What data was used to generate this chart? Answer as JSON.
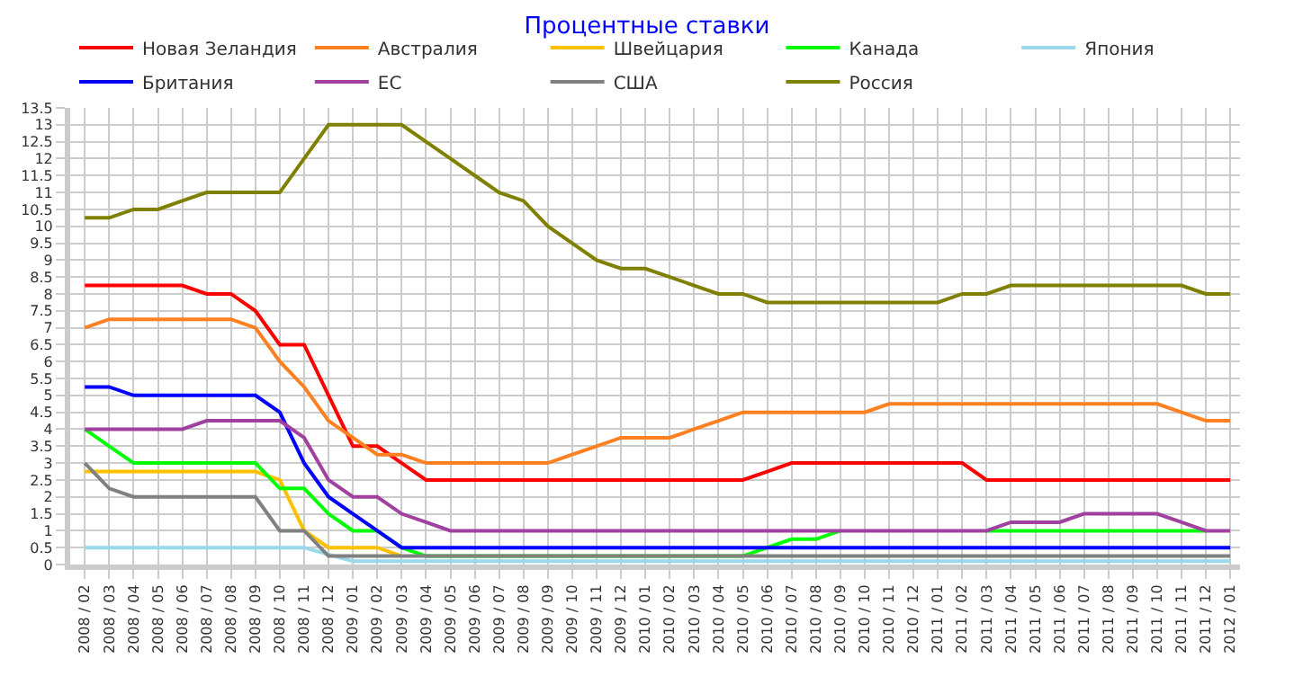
{
  "chart_data": {
    "type": "line",
    "title": "Процентные ставки",
    "categories": [
      "2008 / 02",
      "2008 / 03",
      "2008 / 04",
      "2008 / 05",
      "2008 / 06",
      "2008 / 07",
      "2008 / 08",
      "2008 / 09",
      "2008 / 10",
      "2008 / 11",
      "2008 / 12",
      "2009 / 01",
      "2009 / 02",
      "2009 / 03",
      "2009 / 04",
      "2009 / 05",
      "2009 / 06",
      "2009 / 07",
      "2009 / 08",
      "2009 / 09",
      "2009 / 10",
      "2009 / 11",
      "2009 / 12",
      "2010 / 01",
      "2010 / 02",
      "2010 / 03",
      "2010 / 04",
      "2010 / 05",
      "2010 / 06",
      "2010 / 07",
      "2010 / 08",
      "2010 / 09",
      "2010 / 10",
      "2010 / 11",
      "2010 / 12",
      "2011 / 01",
      "2011 / 02",
      "2011 / 03",
      "2011 / 04",
      "2011 / 05",
      "2011 / 06",
      "2011 / 07",
      "2011 / 08",
      "2011 / 09",
      "2011 / 10",
      "2011 / 11",
      "2011 / 12",
      "2012 / 01"
    ],
    "series": [
      {
        "name": "Новая Зеландия",
        "color": "#ff0000",
        "values": [
          8.25,
          8.25,
          8.25,
          8.25,
          8.25,
          8,
          8,
          7.5,
          6.5,
          6.5,
          5,
          3.5,
          3.5,
          3,
          2.5,
          2.5,
          2.5,
          2.5,
          2.5,
          2.5,
          2.5,
          2.5,
          2.5,
          2.5,
          2.5,
          2.5,
          2.5,
          2.5,
          2.75,
          3,
          3,
          3,
          3,
          3,
          3,
          3,
          3,
          2.5,
          2.5,
          2.5,
          2.5,
          2.5,
          2.5,
          2.5,
          2.5,
          2.5,
          2.5,
          2.5
        ]
      },
      {
        "name": "Австралия",
        "color": "#ff8020",
        "values": [
          7,
          7.25,
          7.25,
          7.25,
          7.25,
          7.25,
          7.25,
          7,
          6,
          5.25,
          4.25,
          3.75,
          3.25,
          3.25,
          3,
          3,
          3,
          3,
          3,
          3,
          3.25,
          3.5,
          3.75,
          3.75,
          3.75,
          4,
          4.25,
          4.5,
          4.5,
          4.5,
          4.5,
          4.5,
          4.5,
          4.75,
          4.75,
          4.75,
          4.75,
          4.75,
          4.75,
          4.75,
          4.75,
          4.75,
          4.75,
          4.75,
          4.75,
          4.5,
          4.25,
          4.25
        ]
      },
      {
        "name": "Швейцария",
        "color": "#ffc000",
        "values": [
          2.75,
          2.75,
          2.75,
          2.75,
          2.75,
          2.75,
          2.75,
          2.75,
          2.5,
          1,
          0.5,
          0.5,
          0.5,
          0.25,
          null,
          null,
          null,
          null,
          null,
          null,
          null,
          null,
          null,
          null,
          null,
          null,
          null,
          null,
          null,
          null,
          null,
          null,
          null,
          null,
          null,
          null,
          null,
          null,
          null,
          null,
          null,
          null,
          null,
          null,
          null,
          null,
          null,
          null
        ]
      },
      {
        "name": "Канада",
        "color": "#00ff00",
        "values": [
          4,
          3.5,
          3,
          3,
          3,
          3,
          3,
          3,
          2.25,
          2.25,
          1.5,
          1,
          1,
          0.5,
          0.25,
          0.25,
          0.25,
          0.25,
          0.25,
          0.25,
          0.25,
          0.25,
          0.25,
          0.25,
          0.25,
          0.25,
          0.25,
          0.25,
          0.5,
          0.75,
          0.75,
          1,
          null,
          null,
          null,
          null,
          null,
          1,
          1,
          1,
          1,
          1,
          1,
          1,
          1,
          1,
          1,
          null
        ]
      },
      {
        "name": "Япония",
        "color": "#99d9ea",
        "values": [
          0.5,
          0.5,
          0.5,
          0.5,
          0.5,
          0.5,
          0.5,
          0.5,
          0.5,
          0.5,
          0.3,
          0.1,
          0.1,
          0.1,
          0.1,
          0.1,
          0.1,
          0.1,
          0.1,
          0.1,
          0.1,
          0.1,
          0.1,
          0.1,
          0.1,
          0.1,
          0.1,
          0.1,
          0.1,
          0.1,
          0.1,
          0.1,
          0.1,
          0.1,
          0.1,
          0.1,
          0.1,
          0.1,
          0.1,
          0.1,
          0.1,
          0.1,
          0.1,
          0.1,
          0.1,
          0.1,
          0.1,
          0.1
        ]
      },
      {
        "name": "Британия",
        "color": "#0000ff",
        "values": [
          5.25,
          5.25,
          5,
          5,
          5,
          5,
          5,
          5,
          4.5,
          3,
          2,
          1.5,
          1,
          0.5,
          0.5,
          0.5,
          0.5,
          0.5,
          0.5,
          0.5,
          0.5,
          0.5,
          0.5,
          0.5,
          0.5,
          0.5,
          0.5,
          0.5,
          0.5,
          0.5,
          0.5,
          0.5,
          0.5,
          0.5,
          0.5,
          0.5,
          0.5,
          0.5,
          0.5,
          0.5,
          0.5,
          0.5,
          0.5,
          0.5,
          0.5,
          0.5,
          0.5,
          0.5
        ]
      },
      {
        "name": "ЕС",
        "color": "#a040a0",
        "values": [
          4,
          4,
          4,
          4,
          4,
          4.25,
          4.25,
          4.25,
          4.25,
          3.75,
          2.5,
          2,
          2,
          1.5,
          1.25,
          1,
          1,
          1,
          1,
          1,
          1,
          1,
          1,
          1,
          1,
          1,
          1,
          1,
          1,
          1,
          1,
          1,
          1,
          1,
          1,
          1,
          1,
          1,
          1.25,
          1.25,
          1.25,
          1.5,
          1.5,
          1.5,
          1.5,
          1.25,
          1,
          1
        ]
      },
      {
        "name": "США",
        "color": "#808080",
        "values": [
          3,
          2.25,
          2,
          2,
          2,
          2,
          2,
          2,
          1,
          1,
          0.25,
          0.25,
          0.25,
          0.25,
          0.25,
          0.25,
          0.25,
          0.25,
          0.25,
          0.25,
          0.25,
          0.25,
          0.25,
          0.25,
          0.25,
          0.25,
          0.25,
          0.25,
          0.25,
          0.25,
          0.25,
          0.25,
          0.25,
          0.25,
          0.25,
          0.25,
          0.25,
          0.25,
          0.25,
          0.25,
          0.25,
          0.25,
          0.25,
          0.25,
          0.25,
          0.25,
          0.25,
          0.25
        ]
      },
      {
        "name": "Россия",
        "color": "#808000",
        "values": [
          10.25,
          10.25,
          10.5,
          10.5,
          10.75,
          11,
          11,
          11,
          11,
          12,
          13,
          13,
          13,
          13,
          12.5,
          12,
          11.5,
          11,
          10.75,
          10,
          9.5,
          9,
          8.75,
          8.75,
          8.5,
          8.25,
          8,
          8,
          7.75,
          7.75,
          7.75,
          7.75,
          7.75,
          7.75,
          7.75,
          7.75,
          8,
          8,
          8.25,
          8.25,
          8.25,
          8.25,
          8.25,
          8.25,
          8.25,
          8.25,
          8,
          8
        ]
      }
    ],
    "ylim": [
      0,
      13.5
    ],
    "yticks": [
      0,
      0.5,
      1,
      1.5,
      2,
      2.5,
      3,
      3.5,
      4,
      4.5,
      5,
      5.5,
      6,
      6.5,
      7,
      7.5,
      8,
      8.5,
      9,
      9.5,
      10,
      10.5,
      11,
      11.5,
      12,
      12.5,
      13,
      13.5
    ],
    "grid": true,
    "legend": "top",
    "marker": "none",
    "line_style": "solid"
  }
}
